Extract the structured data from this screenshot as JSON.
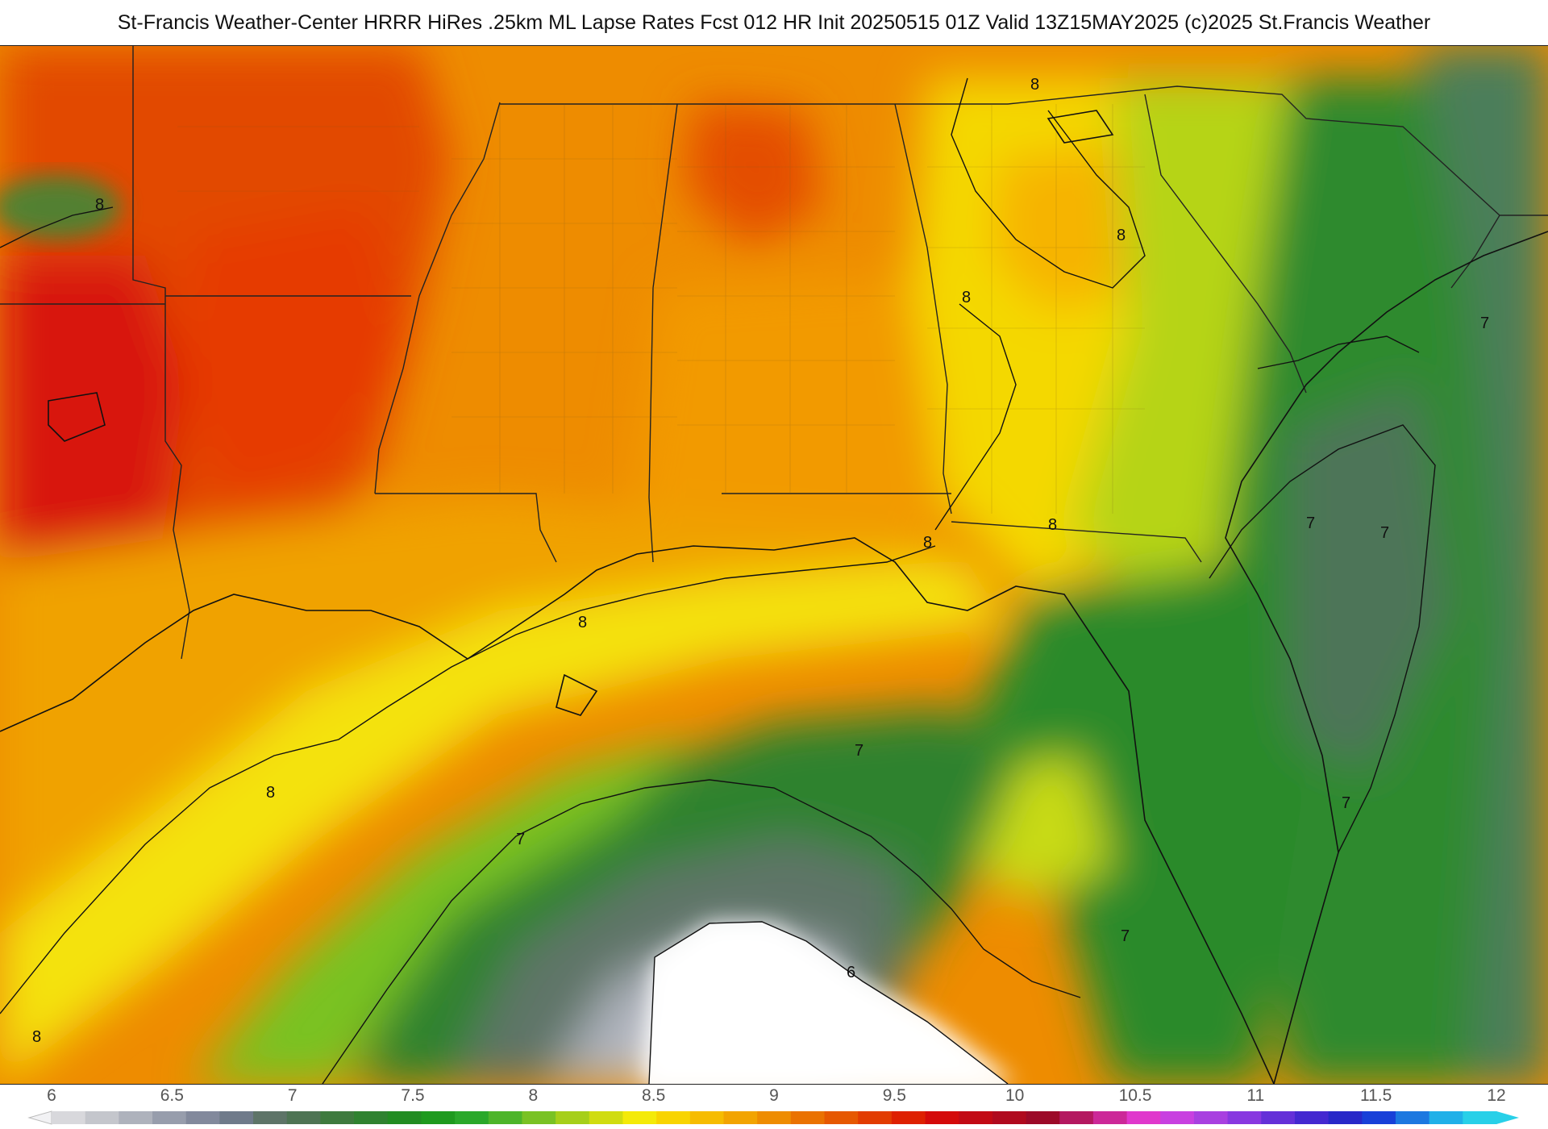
{
  "header": {
    "title": "St-Francis Weather-Center HRRR HiRes .25km ML Lapse Rates  Fcst 012 HR Init 20250515 01Z  Valid 13Z15MAY2025    (c)2025 St.Francis Weather"
  },
  "map": {
    "contour_labels": [
      "8",
      "8",
      "8",
      "8",
      "8",
      "8",
      "8",
      "8",
      "8",
      "7",
      "7",
      "7",
      "7",
      "7",
      "7",
      "7",
      "6"
    ]
  },
  "colorbar": {
    "ticks": [
      "6",
      "6.5",
      "7",
      "7.5",
      "8",
      "8.5",
      "9",
      "9.5",
      "10",
      "10.5",
      "11",
      "11.5",
      "12"
    ],
    "colors": [
      "#d8d8dc",
      "#c4c6cc",
      "#aeb2bc",
      "#979dac",
      "#82899c",
      "#6f7a8a",
      "#5e7468",
      "#4e7454",
      "#3e7a3e",
      "#2f8230",
      "#228c22",
      "#1e9a1e",
      "#2aa82a",
      "#4db52a",
      "#79c224",
      "#a6cf1a",
      "#d0dc10",
      "#f4ea08",
      "#f8d400",
      "#f6bc00",
      "#f2a400",
      "#ee8c00",
      "#ea7200",
      "#e65800",
      "#e23c00",
      "#de2000",
      "#d40a0a",
      "#c20a14",
      "#b00a1e",
      "#9c0a28",
      "#b41860",
      "#cc2898",
      "#e038cc",
      "#c840e0",
      "#a840e0",
      "#8838e0",
      "#6430d8",
      "#4428d0",
      "#2828c8",
      "#1840d8",
      "#1c78e0",
      "#20b0e8",
      "#28d0e8"
    ]
  }
}
